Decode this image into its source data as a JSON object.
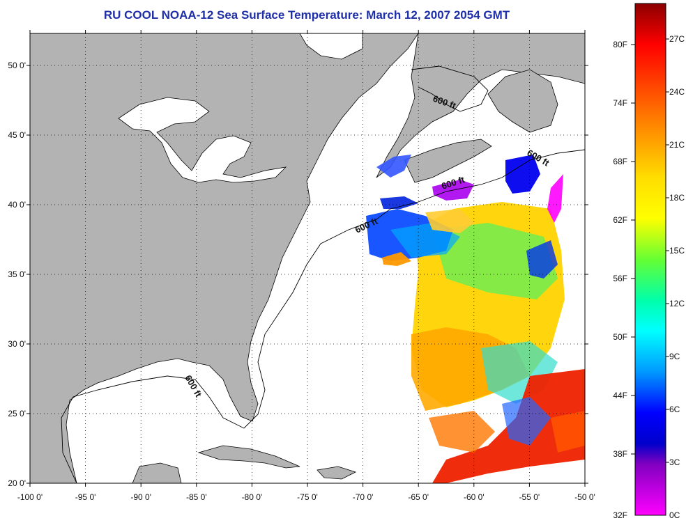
{
  "title": "RU COOL  NOAA-12  Sea Surface Temperature:  March 12, 2007 2054 GMT",
  "axes": {
    "x_ticks": [
      "-100 0'",
      "-95 0'",
      "-90 0'",
      "-85 0'",
      "-80 0'",
      "-75 0'",
      "-70 0'",
      "-65 0'",
      "-60 0'",
      "-55 0'",
      "-50 0'"
    ],
    "y_ticks": [
      "50 0'",
      "45 0'",
      "40 0'",
      "35 0'",
      "30 0'",
      "25 0'",
      "20 0'"
    ]
  },
  "contour_label": "600 ft",
  "colorbar": {
    "fahrenheit": [
      "80F",
      "74F",
      "68F",
      "62F",
      "56F",
      "50F",
      "44F",
      "38F",
      "32F"
    ],
    "celsius": [
      "27C",
      "24C",
      "21C",
      "18C",
      "15C",
      "12C",
      "9C",
      "6C",
      "3C",
      "0C"
    ],
    "colors": [
      "#8b0000",
      "#ff0000",
      "#ff8800",
      "#ffff00",
      "#88ff00",
      "#00ffaa",
      "#00ccff",
      "#0000ff",
      "#7a00cc",
      "#ff00ff"
    ]
  },
  "colors": {
    "land": "#b3b3b3",
    "title": "#1f2fa8"
  }
}
